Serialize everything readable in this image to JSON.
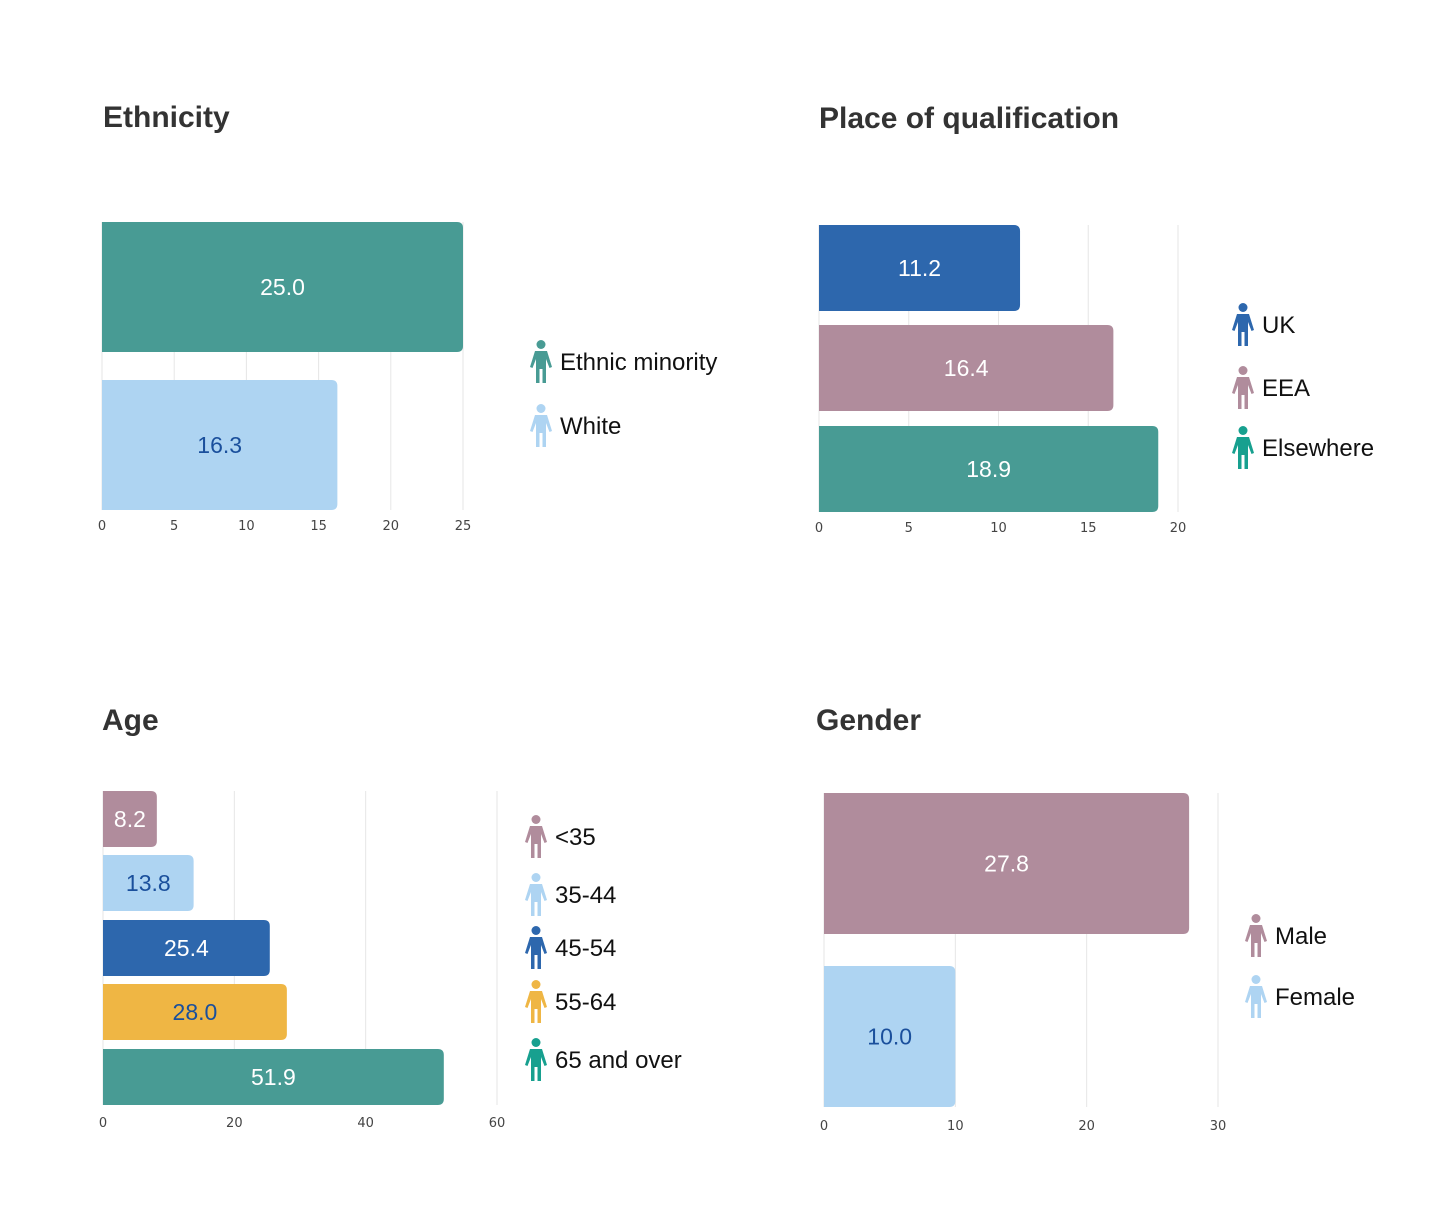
{
  "colors": {
    "teal": "#489b94",
    "light_blue": "#aed4f2",
    "dark_blue": "#2d67ad",
    "mauve": "#b08c9c",
    "amber": "#efb644",
    "bright_teal": "#17a08f",
    "label_dark": "#1a4f9c",
    "label_light": "#ffffff"
  },
  "chart_data": [
    {
      "type": "bar",
      "orientation": "horizontal",
      "title": "Ethnicity",
      "categories": [
        "Ethnic minority",
        "White"
      ],
      "values": [
        25.0,
        16.3
      ],
      "value_labels": [
        "25.0",
        "16.3"
      ],
      "bar_colors": [
        "#489b94",
        "#aed4f2"
      ],
      "label_colors": [
        "#ffffff",
        "#1a4f9c"
      ],
      "icon_colors": [
        "#489b94",
        "#aed4f2"
      ],
      "xlim": [
        0,
        25
      ],
      "xticks": [
        "0",
        "5",
        "10",
        "15",
        "20",
        "25"
      ],
      "tick_values": [
        0,
        5,
        10,
        15,
        20,
        25
      ],
      "grid": true,
      "legend": "right",
      "legend_icon": "person-icon"
    },
    {
      "type": "bar",
      "orientation": "horizontal",
      "title": "Place of qualification",
      "categories": [
        "UK",
        "EEA",
        "Elsewhere"
      ],
      "values": [
        11.2,
        16.4,
        18.9
      ],
      "value_labels": [
        "11.2",
        "16.4",
        "18.9"
      ],
      "bar_colors": [
        "#2d67ad",
        "#b08c9c",
        "#489b94"
      ],
      "label_colors": [
        "#ffffff",
        "#ffffff",
        "#ffffff"
      ],
      "icon_colors": [
        "#2d67ad",
        "#b08c9c",
        "#17a08f"
      ],
      "xlim": [
        0,
        20
      ],
      "xticks": [
        "0",
        "5",
        "10",
        "15",
        "20"
      ],
      "tick_values": [
        0,
        5,
        10,
        15,
        20
      ],
      "grid": true,
      "legend": "right",
      "legend_icon": "person-icon"
    },
    {
      "type": "bar",
      "orientation": "horizontal",
      "title": "Age",
      "categories": [
        "<35",
        "35-44",
        "45-54",
        "55-64",
        "65 and over"
      ],
      "values": [
        8.2,
        13.8,
        25.4,
        28.0,
        51.9
      ],
      "value_labels": [
        "8.2",
        "13.8",
        "25.4",
        "28.0",
        "51.9"
      ],
      "bar_colors": [
        "#b08c9c",
        "#aed4f2",
        "#2d67ad",
        "#efb644",
        "#489b94"
      ],
      "label_colors": [
        "#ffffff",
        "#1a4f9c",
        "#ffffff",
        "#1a4f9c",
        "#ffffff"
      ],
      "icon_colors": [
        "#b08c9c",
        "#aed4f2",
        "#2d67ad",
        "#efb644",
        "#17a08f"
      ],
      "xlim": [
        0,
        60
      ],
      "xticks": [
        "0",
        "20",
        "40",
        "60"
      ],
      "tick_values": [
        0,
        20,
        40,
        60
      ],
      "grid": true,
      "legend": "right",
      "legend_icon": "person-icon"
    },
    {
      "type": "bar",
      "orientation": "horizontal",
      "title": "Gender",
      "categories": [
        "Male",
        "Female"
      ],
      "values": [
        27.8,
        10.0
      ],
      "value_labels": [
        "27.8",
        "10.0"
      ],
      "bar_colors": [
        "#b08c9c",
        "#aed4f2"
      ],
      "label_colors": [
        "#ffffff",
        "#1a4f9c"
      ],
      "icon_colors": [
        "#b08c9c",
        "#aed4f2"
      ],
      "xlim": [
        0,
        30
      ],
      "xticks": [
        "0",
        "10",
        "20",
        "30"
      ],
      "tick_values": [
        0,
        10,
        20,
        30
      ],
      "grid": true,
      "legend": "right",
      "legend_icon": "person-icon"
    }
  ]
}
